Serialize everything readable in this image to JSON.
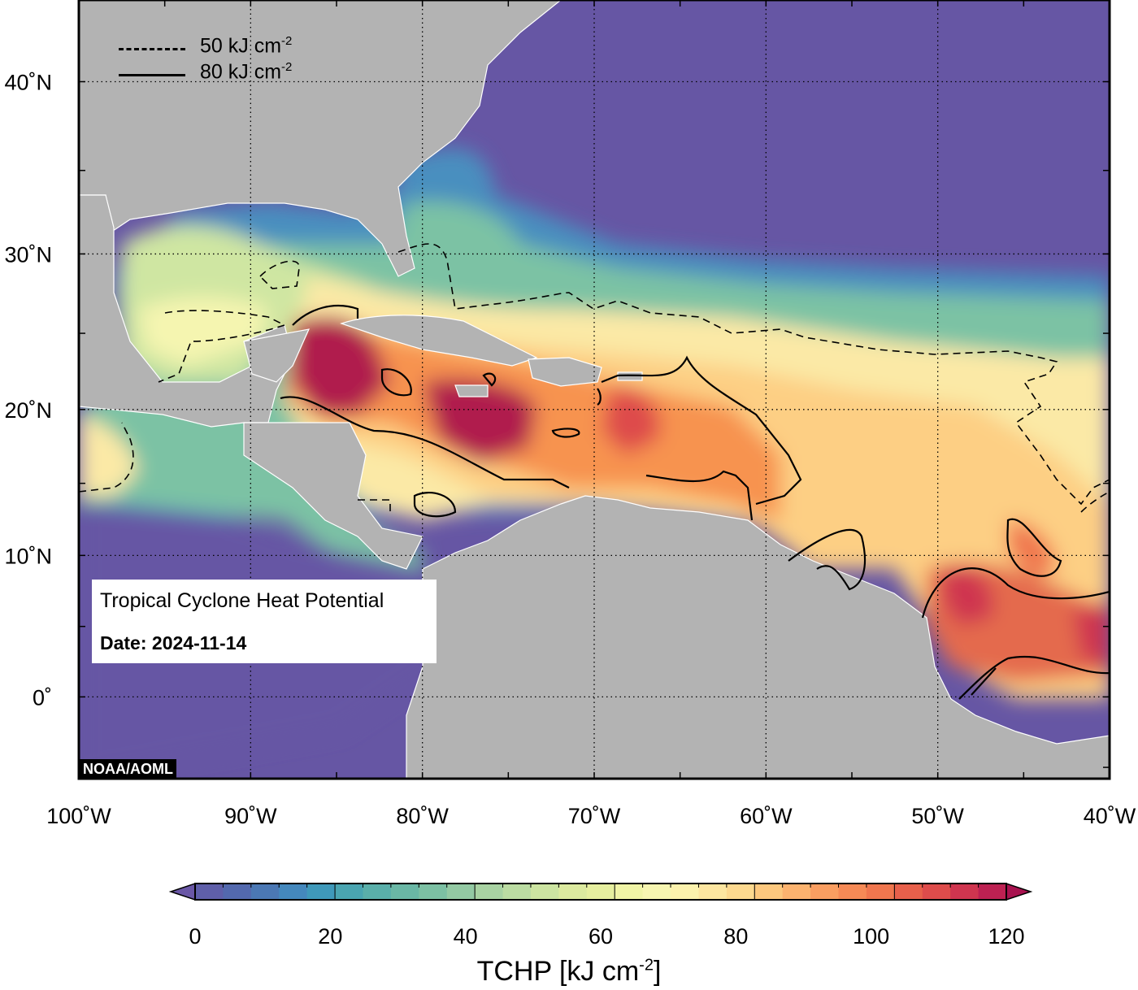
{
  "map": {
    "legend": [
      {
        "style": "dashed",
        "value_label": "50 kJ cm",
        "exp": "-2"
      },
      {
        "style": "solid",
        "value_label": "80 kJ cm",
        "exp": "-2"
      }
    ],
    "info": {
      "title": "Tropical Cyclone Heat Potential",
      "date": "Date: 2024-11-14"
    },
    "credit": "NOAA/AOML",
    "lon_ticks": [
      "100˚W",
      "90˚W",
      "80˚W",
      "70˚W",
      "60˚W",
      "50˚W",
      "40˚W"
    ],
    "lat_ticks": [
      "40˚N",
      "30˚N",
      "20˚N",
      "10˚N",
      "0˚"
    ],
    "colors": {
      "land": "#b3b3b3",
      "ocean_low": "#6656a4",
      "coast": "#ffffff"
    }
  },
  "colorbar": {
    "ticks": [
      "0",
      "20",
      "40",
      "60",
      "80",
      "100",
      "120"
    ],
    "title": "TCHP [kJ cm",
    "title_exp": "-2",
    "title_close": "]",
    "colors": [
      "#6a57a6",
      "#5f5fa9",
      "#5369ae",
      "#4b78b4",
      "#4488bd",
      "#3f99ba",
      "#4aa5b1",
      "#5aafaa",
      "#6ab7a5",
      "#7cc0a3",
      "#93c9a3",
      "#a8d2a2",
      "#bbdca2",
      "#cce4a1",
      "#dcea9f",
      "#e6ef9f",
      "#f0f4a6",
      "#f7f6b1",
      "#fcf2ad",
      "#fde6a0",
      "#fdd98f",
      "#fdc87e",
      "#fcb36f",
      "#fa9e61",
      "#f68a56",
      "#f0764e",
      "#e8604b",
      "#de4c4b",
      "#cf354f",
      "#bd2152",
      "#a8124f"
    ]
  }
}
